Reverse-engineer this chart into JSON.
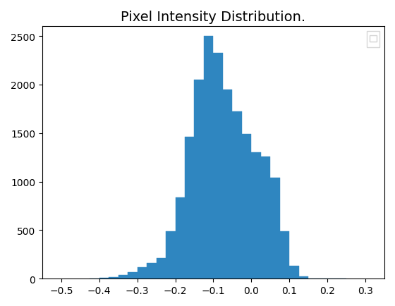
{
  "title": "Pixel Intensity Distribution.",
  "bar_color": "#2f86c0",
  "xlim": [
    -0.55,
    0.35
  ],
  "ylim": [
    0,
    2600
  ],
  "xticks": [
    -0.5,
    -0.4,
    -0.3,
    -0.2,
    -0.1,
    0.0,
    0.1,
    0.2,
    0.3
  ],
  "yticks": [
    0,
    500,
    1000,
    1500,
    2000,
    2500
  ],
  "bin_width": 0.025,
  "bin_left_edges": [
    -0.425,
    -0.4,
    -0.375,
    -0.35,
    -0.325,
    -0.3,
    -0.275,
    -0.25,
    -0.225,
    -0.2,
    -0.175,
    -0.15,
    -0.125,
    -0.1,
    -0.075,
    -0.05,
    -0.025,
    0.0,
    0.025,
    0.05,
    0.075,
    0.1,
    0.125,
    0.15,
    0.175,
    0.2,
    0.225
  ],
  "bar_heights": [
    5,
    10,
    20,
    40,
    70,
    115,
    160,
    215,
    490,
    840,
    1460,
    2050,
    2500,
    2330,
    1950,
    1720,
    1490,
    1300,
    1260,
    1040,
    490,
    130,
    25,
    5,
    0,
    0,
    0
  ]
}
